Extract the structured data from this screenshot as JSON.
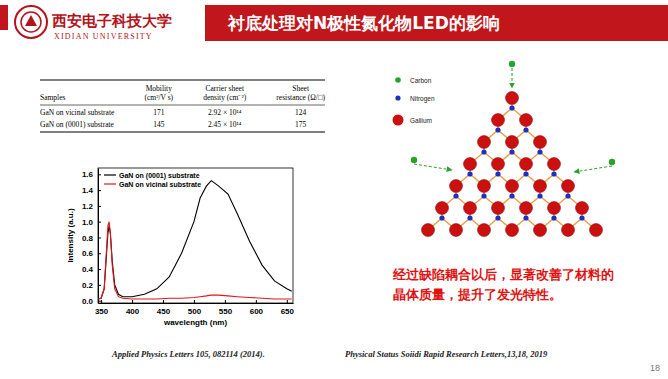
{
  "header": {
    "school_name": "西安电子科技大学",
    "school_name_en": "XIDIAN UNIVERSITY",
    "title": "衬底处理对N极性氮化物LED的影响"
  },
  "table": {
    "header": [
      [
        "Samples"
      ],
      [
        "Mobility",
        "(cm²/V s)"
      ],
      [
        "Carrier sheet",
        "density (cm⁻²)"
      ],
      [
        "Sheet",
        "resistance (Ω/□)"
      ]
    ],
    "rows": [
      [
        "GaN on vicinal substrate",
        171,
        "2.92 × 10¹⁴",
        124
      ],
      [
        "GaN on (0001) substrate",
        145,
        "2.45 × 10¹⁴",
        175
      ]
    ]
  },
  "chart_data": {
    "type": "line",
    "x_label": "wavelength (nm)",
    "y_label": "Intensity (a.u.)",
    "x": [
      345,
      350,
      355,
      358,
      361,
      363,
      365,
      368,
      372,
      378,
      385,
      400,
      420,
      440,
      460,
      480,
      500,
      510,
      520,
      528,
      540,
      555,
      570,
      590,
      610,
      630,
      650,
      658
    ],
    "series": [
      {
        "name": "GaN on (0001) substrate",
        "color": "#000000",
        "values": [
          0.02,
          0.03,
          0.15,
          0.5,
          0.85,
          0.95,
          0.85,
          0.5,
          0.2,
          0.08,
          0.05,
          0.05,
          0.08,
          0.15,
          0.3,
          0.6,
          1.0,
          1.3,
          1.45,
          1.52,
          1.45,
          1.35,
          1.1,
          0.75,
          0.45,
          0.25,
          0.15,
          0.12
        ]
      },
      {
        "name": "GaN on vicinal substrate",
        "color": "#e8141b",
        "values": [
          0.02,
          0.03,
          0.15,
          0.55,
          0.95,
          1.0,
          0.85,
          0.45,
          0.15,
          0.05,
          0.03,
          0.02,
          0.02,
          0.02,
          0.03,
          0.03,
          0.04,
          0.05,
          0.06,
          0.07,
          0.07,
          0.06,
          0.05,
          0.04,
          0.03,
          0.02,
          0.02,
          0.02
        ]
      }
    ],
    "xlim": [
      345,
      660
    ],
    "ylim": [
      -0.03,
      1.68
    ],
    "xticks": [
      350,
      400,
      450,
      500,
      550,
      600,
      650
    ],
    "yticks": [
      {
        "value": 0,
        "label": "0.0"
      },
      {
        "value": 0.2,
        "label": "0.2"
      },
      {
        "value": 0.4,
        "label": "0.4"
      },
      {
        "value": 0.6,
        "label": "0.6"
      },
      {
        "value": 0.8,
        "label": "0.8"
      },
      {
        "value": 1.0,
        "label": "1.0"
      },
      {
        "value": 1.2,
        "label": "1.2"
      },
      {
        "value": 1.4,
        "label": "1.4"
      },
      {
        "value": 1.6,
        "label": "1.6"
      }
    ],
    "legend": "upper left",
    "grid": false
  },
  "diagram": {
    "legend": [
      {
        "label": "Carbon",
        "color": "#2ca02c"
      },
      {
        "label": "Nitrogen",
        "color": "#1f2fbf"
      },
      {
        "label": "Gallium",
        "color": "#cc1010"
      }
    ]
  },
  "note": "经过缺陷耦合以后，显著改善了材料的晶体质量，提升了发光特性。",
  "citations": [
    "Applied Physics Letters 105, 082114 (2014).",
    "Physical Status Soiidi Rapid Research Letters,13,18, 2019"
  ],
  "page_number": 18
}
